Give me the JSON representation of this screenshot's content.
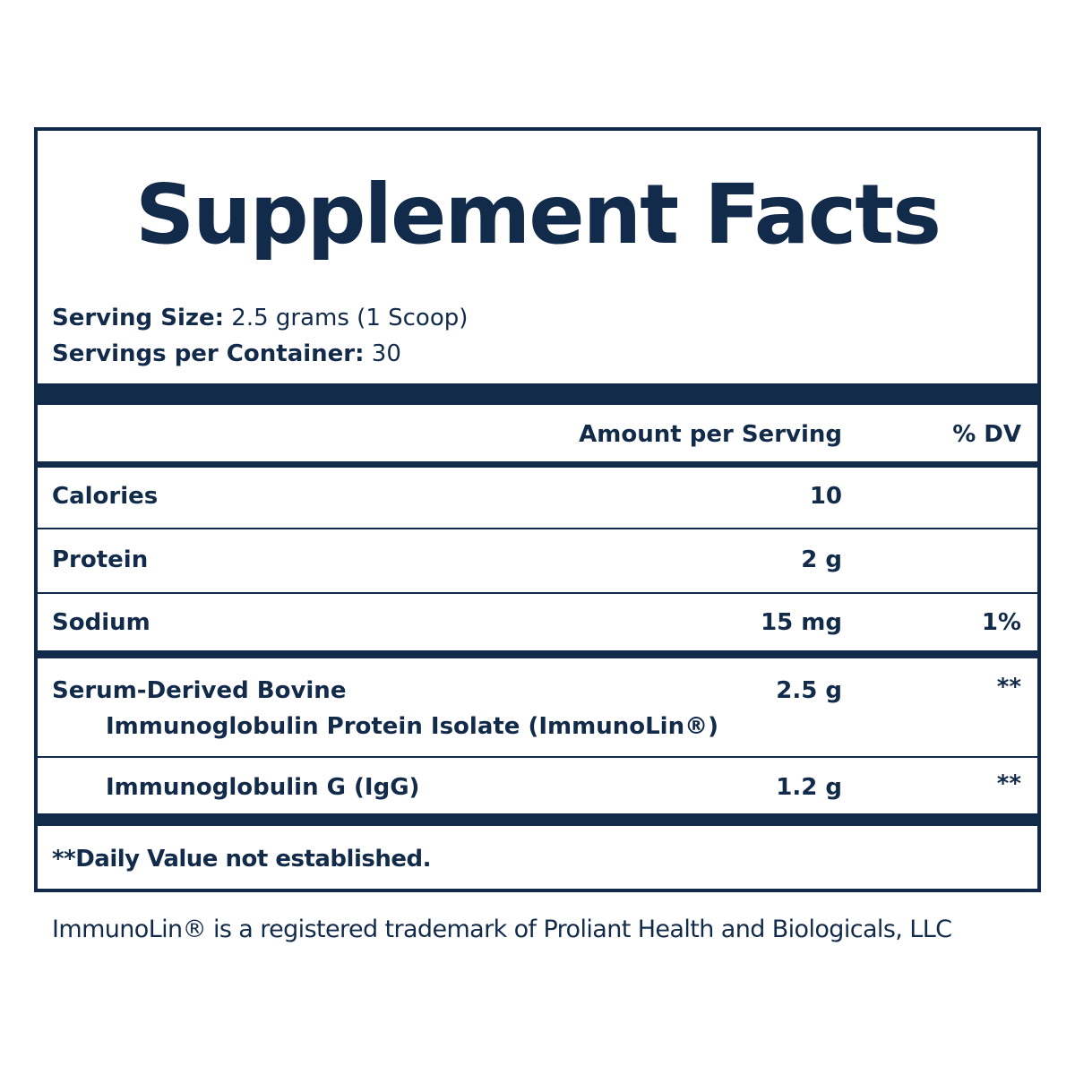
{
  "title": "Supplement Facts",
  "serving": {
    "size_label": "Serving Size:",
    "size_value": "2.5 grams (1 Scoop)",
    "per_container_label": "Servings per Container:",
    "per_container_value": "30"
  },
  "table": {
    "header": [
      "Amount per Serving",
      "% DV"
    ],
    "rows": [
      {
        "name": "Calories",
        "amount": "10"
      },
      {
        "name": "Protein",
        "amount": "2 g"
      },
      {
        "name": "Sodium",
        "amount": "15 mg",
        "dv": "1%"
      },
      {
        "name": "Serum-Derived Bovine",
        "subname": "Immunoglobulin Protein Isolate (ImmunoLin®)",
        "amount": "2.5 g",
        "dv": "**"
      },
      {
        "subname": "Immunoglobulin G (IgG)",
        "amount": "1.2 g",
        "dv": "**"
      }
    ]
  },
  "footnote": "**Daily Value not established.",
  "trademark": "ImmunoLin® is a registered trademark of Proliant Health and Biologicals, LLC"
}
